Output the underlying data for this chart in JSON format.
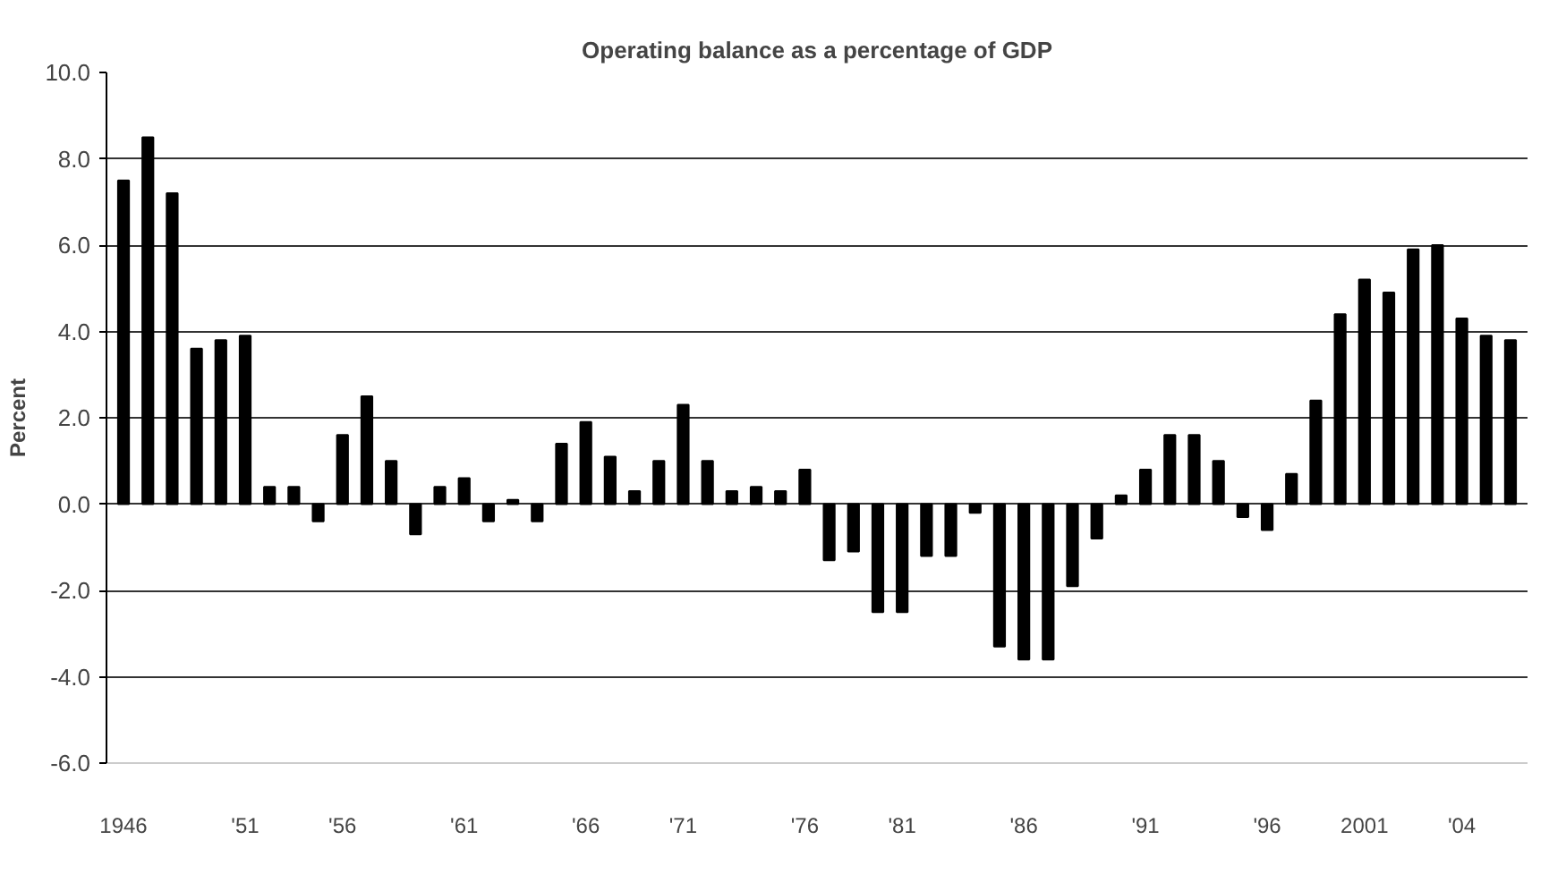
{
  "chart_data": {
    "type": "bar",
    "title": "Operating balance as a percentage of GDP",
    "ylabel": "Percent",
    "categories": [
      "1946",
      null,
      null,
      null,
      null,
      "'51",
      null,
      null,
      null,
      "'56",
      null,
      null,
      null,
      null,
      "'61",
      null,
      null,
      null,
      null,
      "'66",
      null,
      null,
      null,
      "'71",
      null,
      null,
      null,
      null,
      "'76",
      null,
      null,
      null,
      "'81",
      null,
      null,
      null,
      null,
      "'86",
      null,
      null,
      null,
      null,
      "'91",
      null,
      null,
      null,
      null,
      "'96",
      null,
      null,
      null,
      "2001",
      null,
      null,
      null,
      "'04",
      null,
      null
    ],
    "values": [
      7.5,
      8.5,
      7.2,
      3.6,
      3.8,
      3.9,
      0.4,
      0.4,
      -0.4,
      1.6,
      2.5,
      1.0,
      -0.7,
      0.4,
      0.6,
      -0.4,
      0.1,
      -0.4,
      1.4,
      1.9,
      1.1,
      0.3,
      1.0,
      2.3,
      1.0,
      0.3,
      0.4,
      0.3,
      0.8,
      -1.3,
      -1.1,
      -2.5,
      -2.5,
      -1.2,
      -1.2,
      -0.2,
      -3.3,
      -3.6,
      -3.6,
      -1.9,
      -0.8,
      0.2,
      0.8,
      1.6,
      1.6,
      1.0,
      -0.3,
      -0.6,
      0.7,
      2.4,
      4.4,
      5.2,
      4.9,
      5.9,
      6.0,
      4.3,
      3.9,
      3.8
    ],
    "color": "#000000",
    "ylim": [
      -6,
      10
    ],
    "yticks": [
      {
        "value": -6,
        "label": "-6.0"
      },
      {
        "value": -4,
        "label": "-4.0"
      },
      {
        "value": -2,
        "label": "-2.0"
      },
      {
        "value": 0,
        "label": "0.0"
      },
      {
        "value": 2,
        "label": "2.0"
      },
      {
        "value": 4,
        "label": "4.0"
      },
      {
        "value": 6,
        "label": "6.0"
      },
      {
        "value": 8,
        "label": "8.0"
      },
      {
        "value": 10,
        "label": "10.0"
      }
    ],
    "grid": "y"
  }
}
